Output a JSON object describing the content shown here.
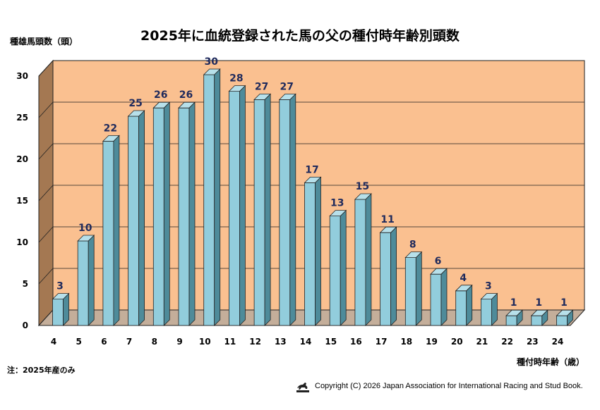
{
  "chart_data": {
    "type": "bar",
    "title": "2025年に血統登録された馬の父の種付時年齢別頭数",
    "ylabel": "種雄馬頭数（頭）",
    "xlabel": "種付時年齢（歳）",
    "ylim": [
      0,
      30
    ],
    "yticks": [
      0,
      5,
      10,
      15,
      20,
      25,
      30
    ],
    "categories": [
      "4",
      "5",
      "6",
      "7",
      "8",
      "9",
      "10",
      "11",
      "12",
      "13",
      "14",
      "15",
      "16",
      "17",
      "18",
      "19",
      "20",
      "21",
      "22",
      "23",
      "24"
    ],
    "values": [
      3,
      10,
      22,
      25,
      26,
      26,
      30,
      28,
      27,
      27,
      17,
      13,
      15,
      11,
      8,
      6,
      4,
      3,
      1,
      1,
      1
    ],
    "grid": true,
    "colors": {
      "back_wall": "#FAC090",
      "side_wall": "#A47852",
      "floor": "#C4AE9A",
      "bar_front": "#92CDDC",
      "bar_top": "#B7E0EA",
      "bar_side": "#4E8B9A",
      "data_label": "#1F2A5C"
    }
  },
  "note": "注：2025年産のみ",
  "copyright": "Copyright (C) 2026  Japan Association for International Racing and Stud Book.",
  "logo_icon": "jairs-horse-logo"
}
